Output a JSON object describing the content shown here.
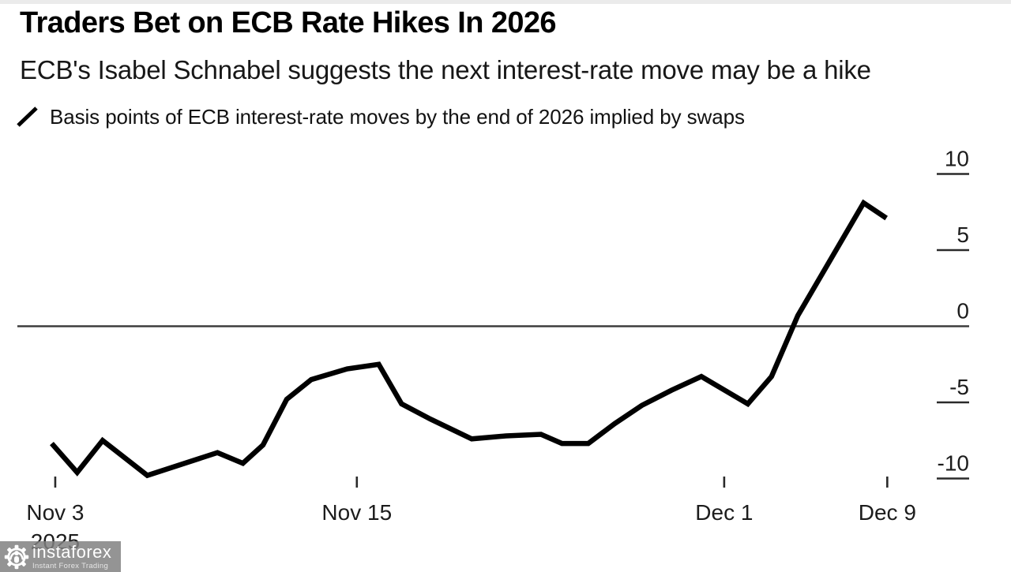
{
  "header": {
    "title": "Traders Bet on ECB Rate Hikes In 2026",
    "subtitle": "ECB's Isabel Schnabel suggests the next interest-rate move may be a hike"
  },
  "legend": {
    "label": "Basis points of ECB interest-rate moves by the end of 2026 implied by swaps"
  },
  "watermark": {
    "brand": "instaforex",
    "tagline": "Instant Forex Trading"
  },
  "colors": {
    "line": "#000000",
    "zero_line": "#3d3d3d",
    "axis_text": "#1c1c1c",
    "watermark_bg": "rgba(128,128,128,0.84)",
    "background": "#ffffff"
  },
  "chart_data": {
    "type": "line",
    "title": "Traders Bet on ECB Rate Hikes In 2026",
    "subtitle": "ECB's Isabel Schnabel suggests the next interest-rate move may be a hike",
    "series_name": "Basis points of ECB interest-rate moves by the end of 2026 implied by swaps",
    "unit": "basis points",
    "grid": false,
    "legend_position": "top-left",
    "y_axis": {
      "side": "right",
      "ticks": [
        10,
        5,
        0,
        -5,
        -10
      ],
      "range": [
        -11.5,
        11.5
      ]
    },
    "x_axis": {
      "start": "Nov 3 2025",
      "end": "Dec 9 2025",
      "ticks": [
        {
          "label": "Nov 3",
          "sublabel": "2025",
          "pos": 0.045
        },
        {
          "label": "Nov 15",
          "pos": 0.389
        },
        {
          "label": "Dec 1",
          "pos": 0.808
        },
        {
          "label": "Dec 9",
          "pos": 0.994
        }
      ]
    },
    "points": [
      [
        0.041,
        -7.7
      ],
      [
        0.07,
        -9.6
      ],
      [
        0.099,
        -7.5
      ],
      [
        0.15,
        -9.8
      ],
      [
        0.23,
        -8.3
      ],
      [
        0.259,
        -9.0
      ],
      [
        0.282,
        -7.8
      ],
      [
        0.309,
        -4.8
      ],
      [
        0.337,
        -3.5
      ],
      [
        0.378,
        -2.8
      ],
      [
        0.414,
        -2.5
      ],
      [
        0.44,
        -5.1
      ],
      [
        0.473,
        -6.1
      ],
      [
        0.52,
        -7.4
      ],
      [
        0.559,
        -7.2
      ],
      [
        0.599,
        -7.1
      ],
      [
        0.623,
        -7.7
      ],
      [
        0.653,
        -7.7
      ],
      [
        0.683,
        -6.4
      ],
      [
        0.714,
        -5.2
      ],
      [
        0.748,
        -4.2
      ],
      [
        0.782,
        -3.3
      ],
      [
        0.835,
        -5.1
      ],
      [
        0.862,
        -3.3
      ],
      [
        0.892,
        0.7
      ],
      [
        0.967,
        8.1
      ],
      [
        0.993,
        7.1
      ]
    ]
  }
}
